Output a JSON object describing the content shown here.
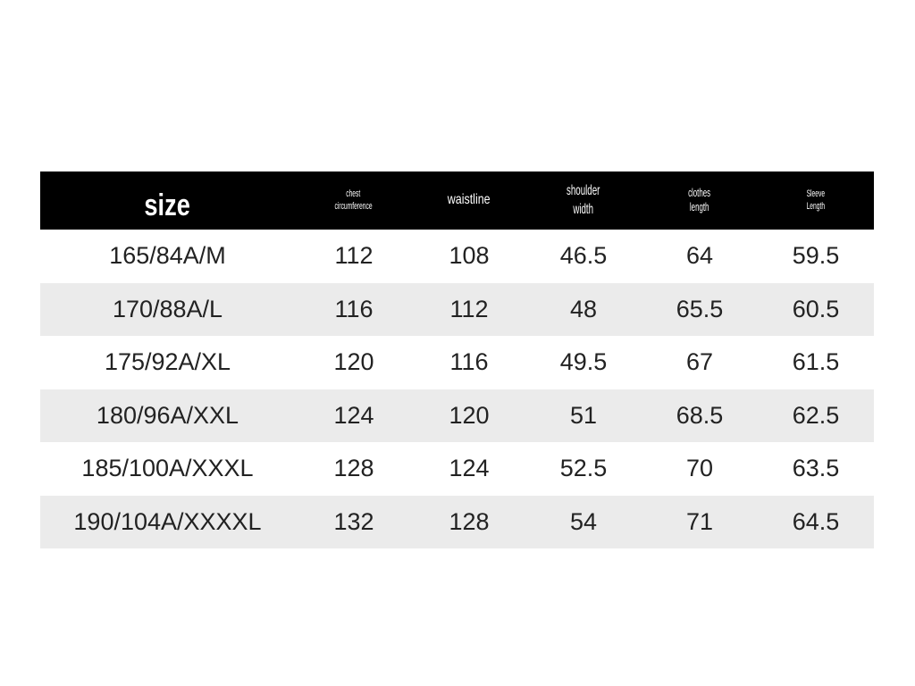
{
  "table": {
    "headers": [
      {
        "line1": "size",
        "line2": ""
      },
      {
        "line1": "chest",
        "line2": "circumference"
      },
      {
        "line1": "waistline",
        "line2": ""
      },
      {
        "line1": "shoulder",
        "line2": "width"
      },
      {
        "line1": "clothes",
        "line2": "length"
      },
      {
        "line1": "Sleeve",
        "line2": "Length"
      }
    ],
    "rows": [
      [
        "165/84A/M",
        "112",
        "108",
        "46.5",
        "64",
        "59.5"
      ],
      [
        "170/88A/L",
        "116",
        "112",
        "48",
        "65.5",
        "60.5"
      ],
      [
        "175/92A/XL",
        "120",
        "116",
        "49.5",
        "67",
        "61.5"
      ],
      [
        "180/96A/XXL",
        "124",
        "120",
        "51",
        "68.5",
        "62.5"
      ],
      [
        "185/100A/XXXL",
        "128",
        "124",
        "52.5",
        "70",
        "63.5"
      ],
      [
        "190/104A/XXXXL",
        "132",
        "128",
        "54",
        "71",
        "64.5"
      ]
    ]
  },
  "colors": {
    "header_bg": "#000000",
    "alt_row_bg": "#ebebeb"
  }
}
